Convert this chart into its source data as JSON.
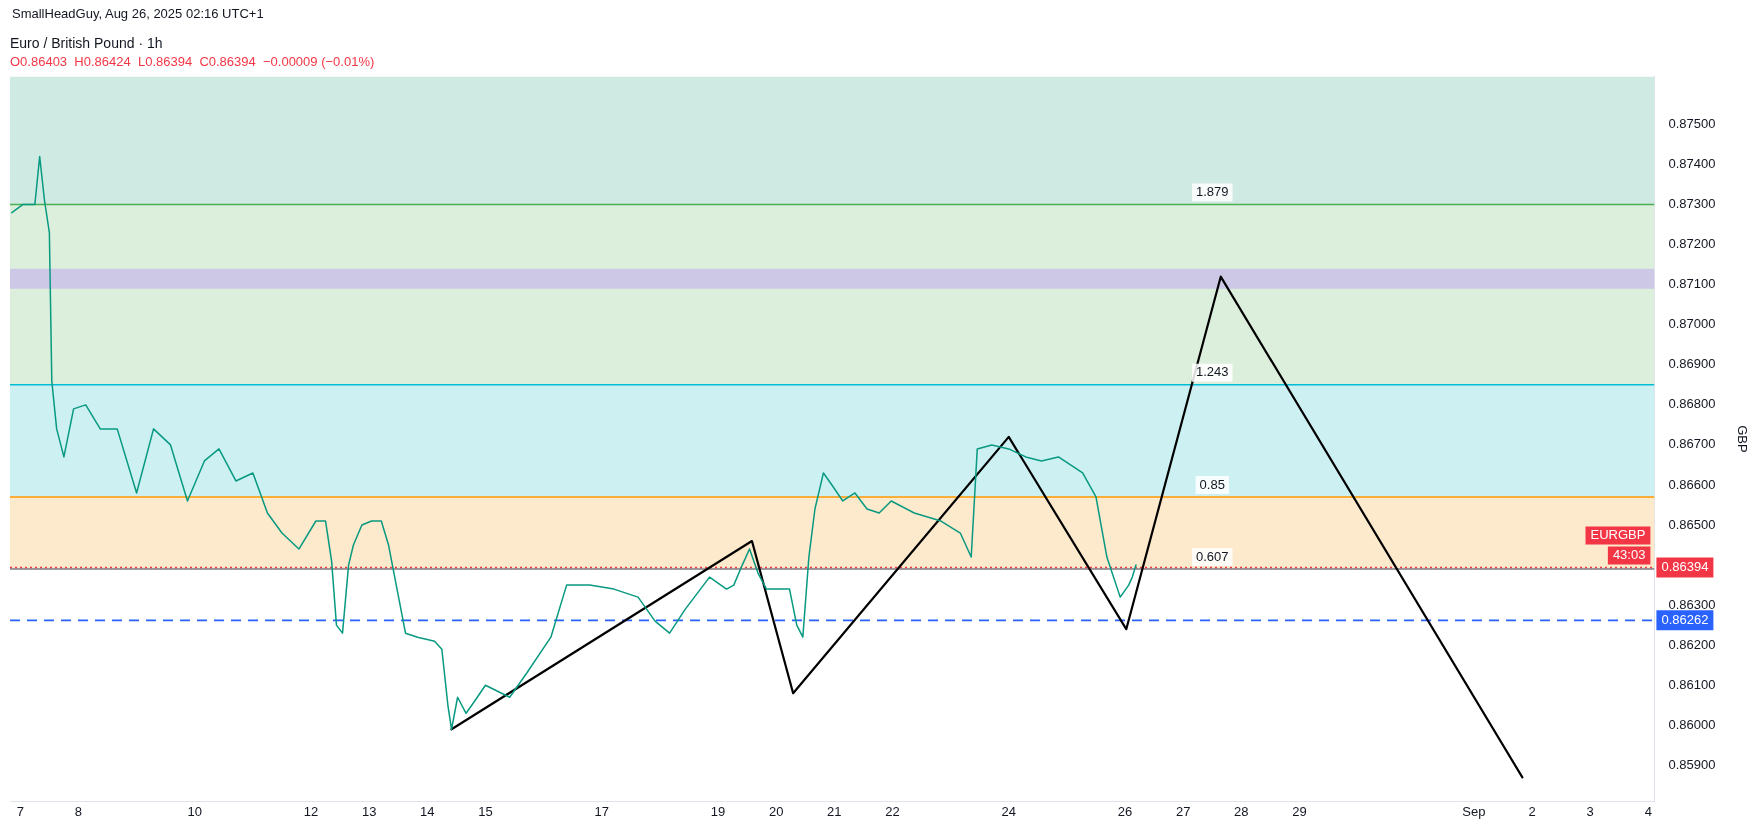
{
  "chart_data": {
    "type": "line",
    "title": "Euro / British Pound · 1h",
    "subtitle": "O0.86403  H0.86424  L0.86394  C0.86394  −0.00009 (−0.01%)",
    "ylabel": "GBP",
    "annotations": [
      "SmallHeadGuy, Aug 26, 2025 02:16 UTC+1",
      {
        "text": "1.879",
        "x": "2025-08-27T12:00",
        "y": 0.8733
      },
      {
        "text": "1.243",
        "x": "2025-08-27T12:00",
        "y": 0.8688
      },
      {
        "text": "0.85",
        "x": "2025-08-27T12:00",
        "y": 0.866
      },
      {
        "text": "0.607",
        "x": "2025-08-27T12:00",
        "y": 0.8642
      },
      "EURGBP",
      "43:03"
    ],
    "series": [
      {
        "color": "#089981",
        "x": [
          "2025-08-06T20:30",
          "2025-08-07T01:00",
          "2025-08-07T06:00",
          "2025-08-07T08:00",
          "2025-08-07T10:00",
          "2025-08-07T12:00",
          "2025-08-07T13:00",
          "2025-08-07T15:00",
          "2025-08-07T18:00",
          "2025-08-07T22:00",
          "2025-08-08T03:00",
          "2025-08-08T09:00",
          "2025-08-08T16:00",
          "2025-08-09T00:00",
          "2025-08-09T07:00",
          "2025-08-09T14:00",
          "2025-08-09T21:00",
          "2025-08-10T04:00",
          "2025-08-10T10:00",
          "2025-08-10T17:00",
          "2025-08-11T00:00",
          "2025-08-11T06:00",
          "2025-08-11T12:00",
          "2025-08-11T19:00",
          "2025-08-12T02:00",
          "2025-08-12T06:00",
          "2025-08-12T08:30",
          "2025-08-12T10:30",
          "2025-08-12T13:00",
          "2025-08-12T15:30",
          "2025-08-12T17:30",
          "2025-08-12T21:00",
          "2025-08-13T01:00",
          "2025-08-13T05:00",
          "2025-08-13T08:00",
          "2025-08-13T11:30",
          "2025-08-13T15:00",
          "2025-08-13T20:00",
          "2025-08-14T03:00",
          "2025-08-14T06:00",
          "2025-08-14T08:30",
          "2025-08-14T10:00",
          "2025-08-14T12:30",
          "2025-08-14T16:00",
          "2025-08-14T19:30",
          "2025-08-15T00:00",
          "2025-08-15T10:00",
          "2025-08-15T17:00",
          "2025-08-16T03:00",
          "2025-08-16T09:30",
          "2025-08-16T19:00",
          "2025-08-17T05:00",
          "2025-08-17T15:00",
          "2025-08-17T22:00",
          "2025-08-18T04:00",
          "2025-08-18T10:30",
          "2025-08-18T20:30",
          "2025-08-19T03:30",
          "2025-08-19T06:30",
          "2025-08-19T10:00",
          "2025-08-19T13:00",
          "2025-08-19T16:30",
          "2025-08-19T20:00",
          "2025-08-20T00:30",
          "2025-08-20T05:30",
          "2025-08-20T08:30",
          "2025-08-20T11:00",
          "2025-08-20T13:30",
          "2025-08-20T16:00",
          "2025-08-20T19:30",
          "2025-08-20T23:00",
          "2025-08-21T03:30",
          "2025-08-21T08:30",
          "2025-08-21T13:30",
          "2025-08-21T18:30",
          "2025-08-21T23:30",
          "2025-08-22T09:00",
          "2025-08-22T20:00",
          "2025-08-23T04:00",
          "2025-08-23T08:30",
          "2025-08-23T11:00",
          "2025-08-23T17:00",
          "2025-08-24T00:00",
          "2025-08-24T07:00",
          "2025-08-24T13:30",
          "2025-08-24T20:30",
          "2025-08-25T06:30",
          "2025-08-25T12:00",
          "2025-08-25T16:30",
          "2025-08-25T22:00",
          "2025-08-26T01:30",
          "2025-08-26T03:00",
          "2025-08-26T04:30"
        ],
        "values": [
          0.8728,
          0.873,
          0.873,
          0.8742,
          0.8731,
          0.8723,
          0.8686,
          0.8674,
          0.8667,
          0.8679,
          0.868,
          0.8674,
          0.8674,
          0.8658,
          0.8674,
          0.867,
          0.8656,
          0.8666,
          0.8669,
          0.8661,
          0.8663,
          0.8653,
          0.8648,
          0.8644,
          0.8651,
          0.8651,
          0.8641,
          0.8625,
          0.8623,
          0.864,
          0.8645,
          0.865,
          0.8651,
          0.8651,
          0.8645,
          0.8634,
          0.8623,
          0.8622,
          0.8621,
          0.8619,
          0.8605,
          0.8599,
          0.8607,
          0.8603,
          0.8606,
          0.861,
          0.8607,
          0.8613,
          0.8622,
          0.8635,
          0.8635,
          0.8634,
          0.8632,
          0.8626,
          0.8623,
          0.8629,
          0.8637,
          0.8634,
          0.8635,
          0.864,
          0.8644,
          0.8638,
          0.8634,
          0.8634,
          0.8634,
          0.8625,
          0.8622,
          0.8642,
          0.8654,
          0.8663,
          0.866,
          0.8656,
          0.8658,
          0.8654,
          0.8653,
          0.8656,
          0.8653,
          0.8651,
          0.8648,
          0.8642,
          0.8669,
          0.867,
          0.8669,
          0.8667,
          0.8666,
          0.8667,
          0.8663,
          0.8657,
          0.8642,
          0.8632,
          0.8635,
          0.8637,
          0.864
        ]
      },
      {
        "color": "#000000",
        "x": [
          "2025-08-14T10:00",
          "2025-08-19T14:00",
          "2025-08-20T07:00",
          "2025-08-24T00:00",
          "2025-08-26T00:30",
          "2025-08-27T15:30",
          "2025-09-01T20:00"
        ],
        "values": [
          0.8599,
          0.8646,
          0.8608,
          0.8672,
          0.8624,
          0.8712,
          0.8587
        ]
      }
    ],
    "xlim": [
      "2025-08-06T19:45",
      "2025-09-04T02:30"
    ],
    "xticks": [
      {
        "value": "2025-08-07",
        "label": "7"
      },
      {
        "value": "2025-08-08",
        "label": "8"
      },
      {
        "value": "2025-08-10",
        "label": "10"
      },
      {
        "value": "2025-08-12",
        "label": "12"
      },
      {
        "value": "2025-08-13",
        "label": "13"
      },
      {
        "value": "2025-08-14",
        "label": "14"
      },
      {
        "value": "2025-08-15",
        "label": "15"
      },
      {
        "value": "2025-08-17",
        "label": "17"
      },
      {
        "value": "2025-08-19",
        "label": "19"
      },
      {
        "value": "2025-08-20",
        "label": "20"
      },
      {
        "value": "2025-08-21",
        "label": "21"
      },
      {
        "value": "2025-08-22",
        "label": "22"
      },
      {
        "value": "2025-08-24",
        "label": "24"
      },
      {
        "value": "2025-08-26",
        "label": "26"
      },
      {
        "value": "2025-08-27",
        "label": "27"
      },
      {
        "value": "2025-08-28",
        "label": "28"
      },
      {
        "value": "2025-08-29",
        "label": "29"
      },
      {
        "value": "2025-09-01",
        "label": "Sep"
      },
      {
        "value": "2025-09-02",
        "label": "2"
      },
      {
        "value": "2025-09-03",
        "label": "3"
      },
      {
        "value": "2025-09-04",
        "label": "4"
      }
    ],
    "ylim": [
      0.8581,
      0.8762
    ],
    "yticks": [
      {
        "value": 0.875,
        "label": "0.87500"
      },
      {
        "value": 0.874,
        "label": "0.87400"
      },
      {
        "value": 0.873,
        "label": "0.87300"
      },
      {
        "value": 0.872,
        "label": "0.87200"
      },
      {
        "value": 0.871,
        "label": "0.87100"
      },
      {
        "value": 0.87,
        "label": "0.87000"
      },
      {
        "value": 0.869,
        "label": "0.86900"
      },
      {
        "value": 0.868,
        "label": "0.86800"
      },
      {
        "value": 0.867,
        "label": "0.86700"
      },
      {
        "value": 0.866,
        "label": "0.86600"
      },
      {
        "value": 0.865,
        "label": "0.86500"
      },
      {
        "value": 0.863,
        "label": "0.86300"
      },
      {
        "value": 0.862,
        "label": "0.86200"
      },
      {
        "value": 0.861,
        "label": "0.86100"
      },
      {
        "value": 0.86,
        "label": "0.86000"
      },
      {
        "value": 0.859,
        "label": "0.85900"
      }
    ],
    "bands": [
      {
        "axis": "y",
        "from": 0.8639,
        "to": 0.8657,
        "color": "#fde9cc"
      },
      {
        "axis": "y",
        "from": 0.8657,
        "to": 0.8685,
        "color": "#cdf0f3"
      },
      {
        "axis": "y",
        "from": 0.8685,
        "to": 0.873,
        "color": "#dcefdc"
      },
      {
        "axis": "y",
        "from": 0.873,
        "to": 0.8762,
        "color": "#cfe9e3"
      },
      {
        "axis": "y",
        "from": 0.8709,
        "to": 0.8714,
        "color": "#cdc8e6"
      }
    ],
    "ref_lines": [
      {
        "axis": "y",
        "value": 0.873,
        "color": "#4caf50"
      },
      {
        "axis": "y",
        "value": 0.8685,
        "color": "#00bcd4"
      },
      {
        "axis": "y",
        "value": 0.8657,
        "color": "#ff9800"
      },
      {
        "axis": "y",
        "value": 0.8639,
        "color": "#787b86"
      },
      {
        "axis": "y",
        "value": 0.86394,
        "label": "0.86394",
        "color": "#f23645",
        "line_style": "dotted"
      },
      {
        "axis": "y",
        "value": 0.86262,
        "label": "0.86262",
        "color": "#2962ff",
        "line_style": "dashed"
      }
    ],
    "grid": false,
    "legend": false,
    "marker": "none",
    "line_style": "solid"
  }
}
